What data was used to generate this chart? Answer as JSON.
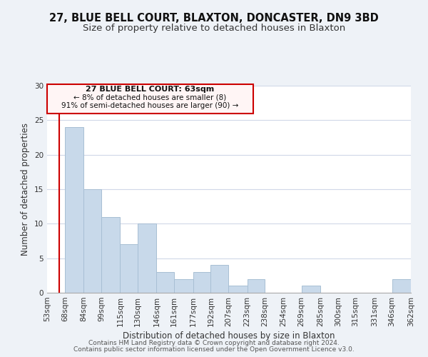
{
  "title_line1": "27, BLUE BELL COURT, BLAXTON, DONCASTER, DN9 3BD",
  "title_line2": "Size of property relative to detached houses in Blaxton",
  "xlabel": "Distribution of detached houses by size in Blaxton",
  "ylabel": "Number of detached properties",
  "bin_edges": [
    53,
    68,
    84,
    99,
    115,
    130,
    146,
    161,
    177,
    192,
    207,
    223,
    238,
    254,
    269,
    285,
    300,
    315,
    331,
    346,
    362
  ],
  "bar_heights": [
    0,
    24,
    15,
    11,
    7,
    10,
    3,
    2,
    3,
    4,
    1,
    2,
    0,
    0,
    1,
    0,
    0,
    0,
    0,
    2
  ],
  "bar_color": "#c8d9ea",
  "bar_edgecolor": "#a8bfd4",
  "ylim": [
    0,
    30
  ],
  "yticks": [
    0,
    5,
    10,
    15,
    20,
    25,
    30
  ],
  "property_size": 63,
  "red_line_color": "#cc0000",
  "annotation_title": "27 BLUE BELL COURT: 63sqm",
  "annotation_line2": "← 8% of detached houses are smaller (8)",
  "annotation_line3": "91% of semi-detached houses are larger (90) →",
  "annotation_box_facecolor": "#fff5f5",
  "annotation_border_color": "#cc0000",
  "footer_line1": "Contains HM Land Registry data © Crown copyright and database right 2024.",
  "footer_line2": "Contains public sector information licensed under the Open Government Licence v3.0.",
  "background_color": "#eef2f7",
  "plot_background": "#ffffff",
  "grid_color": "#d0d8e8",
  "title_fontsize": 10.5,
  "subtitle_fontsize": 9.5,
  "tick_label_fontsize": 7.5,
  "axis_label_fontsize": 8.5,
  "footer_fontsize": 6.5,
  "annotation_fontsize_title": 8,
  "annotation_fontsize_body": 7.5
}
